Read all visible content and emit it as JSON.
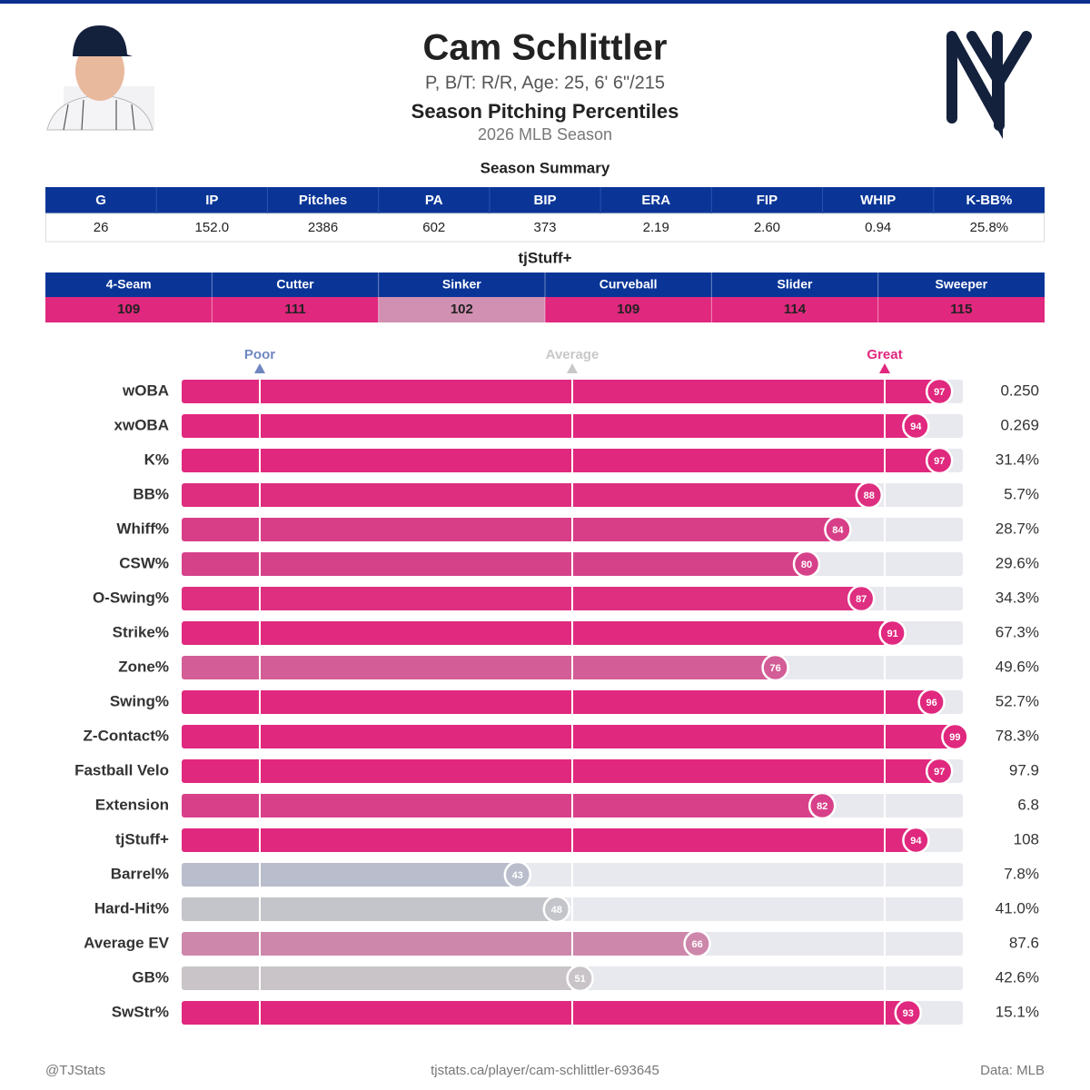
{
  "header": {
    "name": "Cam Schlittler",
    "bio": "P, B/T: R/R, Age: 25, 6' 6\"/215",
    "title": "Season Pitching Percentiles",
    "season": "2026 MLB Season"
  },
  "summary": {
    "title": "Season Summary",
    "columns": [
      "G",
      "IP",
      "Pitches",
      "PA",
      "BIP",
      "ERA",
      "FIP",
      "WHIP",
      "K-BB%"
    ],
    "row": [
      "26",
      "152.0",
      "2386",
      "602",
      "373",
      "2.19",
      "2.60",
      "0.94",
      "25.8%"
    ]
  },
  "stuff": {
    "title": "tjStuff+",
    "columns": [
      "4-Seam",
      "Cutter",
      "Sinker",
      "Curveball",
      "Slider",
      "Sweeper"
    ],
    "values": [
      109,
      111,
      102,
      109,
      114,
      115
    ],
    "colors": [
      "#e0287e",
      "#e0287e",
      "#d190b2",
      "#e0287e",
      "#e0287e",
      "#e0287e"
    ]
  },
  "chart_data": {
    "type": "bar",
    "categories": [
      "wOBA",
      "xwOBA",
      "K%",
      "BB%",
      "Whiff%",
      "CSW%",
      "O-Swing%",
      "Strike%",
      "Zone%",
      "Swing%",
      "Z-Contact%",
      "Fastball Velo",
      "Extension",
      "tjStuff+",
      "Barrel%",
      "Hard-Hit%",
      "Average EV",
      "GB%",
      "SwStr%"
    ],
    "values": [
      97,
      94,
      97,
      88,
      84,
      80,
      87,
      91,
      76,
      96,
      99,
      97,
      82,
      94,
      43,
      48,
      66,
      51,
      93
    ],
    "colors": [
      "#e0287e",
      "#e0287e",
      "#e0287e",
      "#de2e80",
      "#d83e88",
      "#d6428a",
      "#de2f81",
      "#e0297f",
      "#d35d96",
      "#e0287e",
      "#e0287e",
      "#e0287e",
      "#d8418a",
      "#e0287e",
      "#b9bdcc",
      "#c4c5ca",
      "#cd87ab",
      "#c9c4c7",
      "#e0287e"
    ],
    "stats": [
      "0.250",
      "0.269",
      "31.4%",
      "5.7%",
      "28.7%",
      "29.6%",
      "34.3%",
      "67.3%",
      "49.6%",
      "52.7%",
      "78.3%",
      "97.9",
      "6.8",
      "108",
      "7.8%",
      "41.0%",
      "87.6",
      "42.6%",
      "15.1%"
    ],
    "xlim": [
      0,
      100
    ],
    "markers": [
      {
        "value": 10,
        "label": "Poor",
        "color": "#6f86c0"
      },
      {
        "value": 50,
        "label": "Average",
        "color": "#c8c8c8"
      },
      {
        "value": 90,
        "label": "Great",
        "color": "#e0287e"
      }
    ]
  },
  "footer": {
    "left": "@TJStats",
    "center": "tjstats.ca/player/cam-schlittler-693645",
    "right": "Data: MLB"
  }
}
